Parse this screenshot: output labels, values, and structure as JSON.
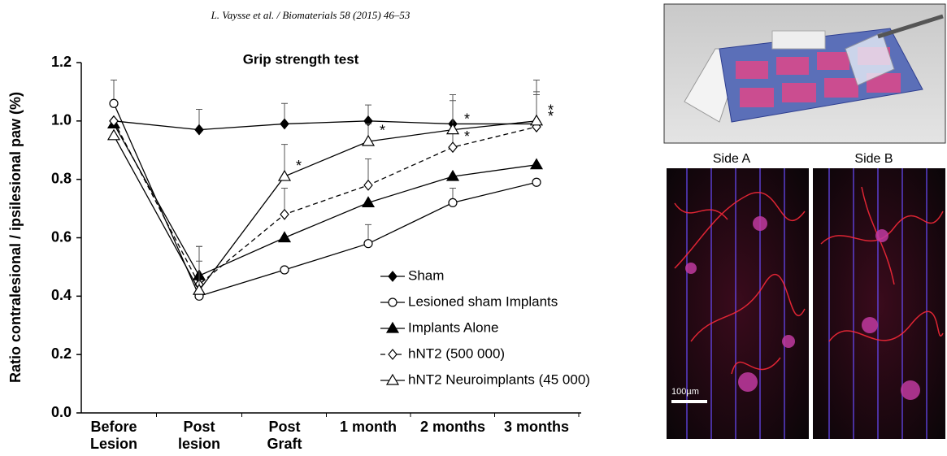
{
  "header": "L. Vaysse et al. / Biomaterials 58 (2015) 46–53",
  "chart_data": {
    "type": "line",
    "title": "Grip strength test",
    "y_label": "Ratio contralesional / ipsilesional paw (%)",
    "categories": [
      "Before\nLesion",
      "Post\nlesion",
      "Post\nGraft",
      "1 month",
      "2 months",
      "3 months"
    ],
    "ylim": [
      0,
      1.2
    ],
    "yticks": [
      {
        "value": 0,
        "label": "0.0"
      },
      0.2,
      0.4,
      0.6,
      0.8,
      {
        "value": 1,
        "label": "1.0"
      },
      1.2
    ],
    "series": [
      {
        "name": "Sham",
        "color": "#000000",
        "marker": "diamond",
        "filled": true,
        "dashed": false,
        "values": [
          1.0,
          0.97,
          0.99,
          1.0,
          0.99,
          0.99
        ],
        "errors": [
          null,
          0.07,
          0.07,
          0.055,
          0.1,
          0.1
        ]
      },
      {
        "name": "Lesioned sham Implants",
        "color": "#000000",
        "marker": "circle",
        "filled": false,
        "dashed": false,
        "values": [
          1.06,
          0.4,
          0.49,
          0.58,
          0.72,
          0.79
        ],
        "errors": [
          0.08,
          null,
          null,
          0.065,
          0.05,
          null
        ]
      },
      {
        "name": "Implants Alone",
        "color": "#000000",
        "marker": "triangle",
        "filled": true,
        "dashed": false,
        "values": [
          0.99,
          0.47,
          0.6,
          0.72,
          0.81,
          0.85
        ],
        "errors": [
          null,
          0.1,
          null,
          null,
          null,
          null
        ]
      },
      {
        "name": "hNT2 (500 000)",
        "color": "#000000",
        "marker": "diamond",
        "filled": false,
        "dashed": true,
        "values": [
          1.0,
          0.44,
          0.68,
          0.78,
          0.91,
          0.98
        ],
        "errors": [
          null,
          0.13,
          0.09,
          0.09,
          0.18,
          0.12
        ]
      },
      {
        "name": "hNT2 Neuroimplants (45 000)",
        "color": "#000000",
        "marker": "triangle",
        "filled": false,
        "dashed": false,
        "values": [
          0.95,
          0.42,
          0.81,
          0.93,
          0.97,
          1.0
        ],
        "errors": [
          null,
          0.1,
          0.11,
          0.06,
          0.1,
          0.14
        ]
      }
    ],
    "annotations": [
      {
        "text": "*",
        "series": 4,
        "index": 2
      },
      {
        "text": "*",
        "series": 4,
        "index": 3
      },
      {
        "text": "*",
        "series": 4,
        "index": 4
      },
      {
        "text": "*",
        "series": 4,
        "index": 5
      },
      {
        "text": "*",
        "series": 3,
        "index": 4
      },
      {
        "text": "*",
        "series": 3,
        "index": 5
      }
    ]
  },
  "images": {
    "side_a": "Side A",
    "side_b": "Side B",
    "scale_bar": "100µm"
  }
}
